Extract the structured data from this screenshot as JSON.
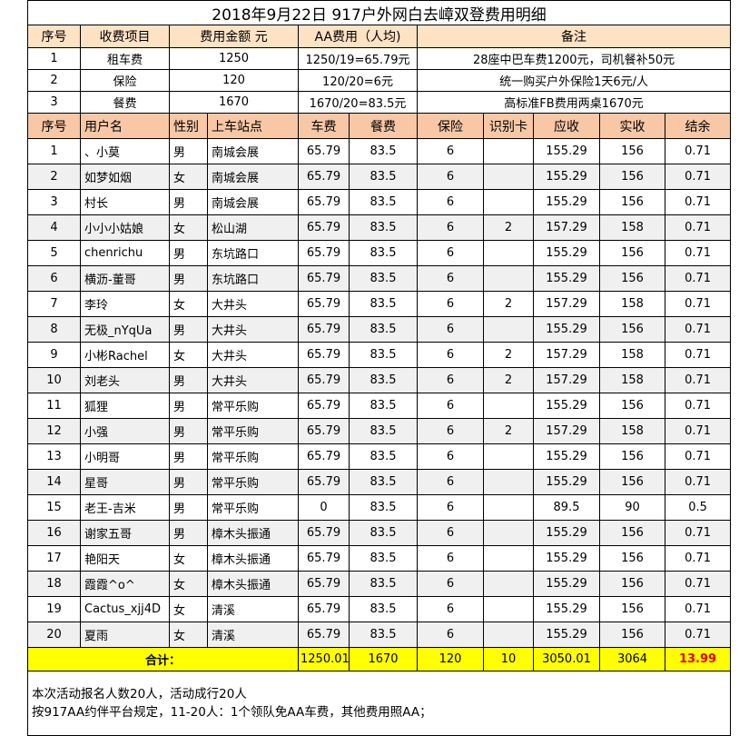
{
  "title": "2018年9月22日 917户外网白去嶂双登费用明细",
  "summary": {
    "headers": [
      "序号",
      "收费项目",
      "费用金额 元",
      "AA费用（人均)",
      "备注"
    ],
    "rows": [
      {
        "no": "1",
        "item": "租车费",
        "amount": "1250",
        "aa": "1250/19=65.79元",
        "note": "28座中巴车费1200元，司机餐补50元"
      },
      {
        "no": "2",
        "item": "保险",
        "amount": "120",
        "aa": "120/20=6元",
        "note": "统一购买户外保险1天6元/人"
      },
      {
        "no": "3",
        "item": "餐费",
        "amount": "1670",
        "aa": "1670/20=83.5元",
        "note": "高标准FB费用两桌1670元"
      }
    ]
  },
  "detail": {
    "headers": [
      "序号",
      "用户名",
      "性别",
      "上车站点",
      "车费",
      "餐费",
      "保险",
      "识别卡",
      "应收",
      "实收",
      "结余"
    ],
    "rows": [
      {
        "no": "1",
        "name": "、小莫",
        "gender": "男",
        "station": "南城会展",
        "car": "65.79",
        "meal": "83.5",
        "ins": "6",
        "card": "",
        "due": "155.29",
        "paid": "156",
        "bal": "0.71"
      },
      {
        "no": "2",
        "name": "如梦如烟",
        "gender": "女",
        "station": "南城会展",
        "car": "65.79",
        "meal": "83.5",
        "ins": "6",
        "card": "",
        "due": "155.29",
        "paid": "156",
        "bal": "0.71"
      },
      {
        "no": "3",
        "name": "村长",
        "gender": "男",
        "station": "南城会展",
        "car": "65.79",
        "meal": "83.5",
        "ins": "6",
        "card": "",
        "due": "155.29",
        "paid": "156",
        "bal": "0.71"
      },
      {
        "no": "4",
        "name": "小小小姑娘",
        "gender": "女",
        "station": "松山湖",
        "car": "65.79",
        "meal": "83.5",
        "ins": "6",
        "card": "2",
        "due": "157.29",
        "paid": "158",
        "bal": "0.71"
      },
      {
        "no": "5",
        "name": "chenrichu",
        "gender": "男",
        "station": "东坑路口",
        "car": "65.79",
        "meal": "83.5",
        "ins": "6",
        "card": "",
        "due": "155.29",
        "paid": "156",
        "bal": "0.71"
      },
      {
        "no": "6",
        "name": "横沥-董哥",
        "gender": "男",
        "station": "东坑路口",
        "car": "65.79",
        "meal": "83.5",
        "ins": "6",
        "card": "",
        "due": "155.29",
        "paid": "156",
        "bal": "0.71"
      },
      {
        "no": "7",
        "name": "李玲",
        "gender": "女",
        "station": "大井头",
        "car": "65.79",
        "meal": "83.5",
        "ins": "6",
        "card": "2",
        "due": "157.29",
        "paid": "158",
        "bal": "0.71"
      },
      {
        "no": "8",
        "name": "无极_nYqUa",
        "gender": "男",
        "station": "大井头",
        "car": "65.79",
        "meal": "83.5",
        "ins": "6",
        "card": "",
        "due": "155.29",
        "paid": "156",
        "bal": "0.71"
      },
      {
        "no": "9",
        "name": "小彬Rachel",
        "gender": "女",
        "station": "大井头",
        "car": "65.79",
        "meal": "83.5",
        "ins": "6",
        "card": "2",
        "due": "157.29",
        "paid": "158",
        "bal": "0.71"
      },
      {
        "no": "10",
        "name": "刘老头",
        "gender": "男",
        "station": "大井头",
        "car": "65.79",
        "meal": "83.5",
        "ins": "6",
        "card": "2",
        "due": "157.29",
        "paid": "158",
        "bal": "0.71"
      },
      {
        "no": "11",
        "name": "狐狸",
        "gender": "男",
        "station": "常平乐购",
        "car": "65.79",
        "meal": "83.5",
        "ins": "6",
        "card": "",
        "due": "155.29",
        "paid": "156",
        "bal": "0.71"
      },
      {
        "no": "12",
        "name": "小强",
        "gender": "男",
        "station": "常平乐购",
        "car": "65.79",
        "meal": "83.5",
        "ins": "6",
        "card": "2",
        "due": "157.29",
        "paid": "158",
        "bal": "0.71"
      },
      {
        "no": "13",
        "name": "小明哥",
        "gender": "男",
        "station": "常平乐购",
        "car": "65.79",
        "meal": "83.5",
        "ins": "6",
        "card": "",
        "due": "155.29",
        "paid": "156",
        "bal": "0.71"
      },
      {
        "no": "14",
        "name": "星哥",
        "gender": "男",
        "station": "常平乐购",
        "car": "65.79",
        "meal": "83.5",
        "ins": "6",
        "card": "",
        "due": "155.29",
        "paid": "156",
        "bal": "0.71"
      },
      {
        "no": "15",
        "name": "老王-吉米",
        "gender": "男",
        "station": "常平乐购",
        "car": "0",
        "meal": "83.5",
        "ins": "6",
        "card": "",
        "due": "89.5",
        "paid": "90",
        "bal": "0.5"
      },
      {
        "no": "16",
        "name": "谢家五哥",
        "gender": "男",
        "station": "樟木头振通",
        "car": "65.79",
        "meal": "83.5",
        "ins": "6",
        "card": "",
        "due": "155.29",
        "paid": "156",
        "bal": "0.71"
      },
      {
        "no": "17",
        "name": "艳阳天",
        "gender": "女",
        "station": "樟木头振通",
        "car": "65.79",
        "meal": "83.5",
        "ins": "6",
        "card": "",
        "due": "155.29",
        "paid": "156",
        "bal": "0.71"
      },
      {
        "no": "18",
        "name": "霞霞^o^",
        "gender": "女",
        "station": "樟木头振通",
        "car": "65.79",
        "meal": "83.5",
        "ins": "6",
        "card": "",
        "due": "155.29",
        "paid": "156",
        "bal": "0.71"
      },
      {
        "no": "19",
        "name": "Cactus_xjj4D",
        "gender": "女",
        "station": "清溪",
        "car": "65.79",
        "meal": "83.5",
        "ins": "6",
        "card": "",
        "due": "155.29",
        "paid": "156",
        "bal": "0.71"
      },
      {
        "no": "20",
        "name": "夏雨",
        "gender": "女",
        "station": "清溪",
        "car": "65.79",
        "meal": "83.5",
        "ins": "6",
        "card": "",
        "due": "155.29",
        "paid": "156",
        "bal": "0.71"
      }
    ],
    "total": {
      "label": "合计：",
      "car": "1250.01",
      "meal": "1670",
      "ins": "120",
      "card": "10",
      "due": "3050.01",
      "paid": "3064",
      "bal": "13.99"
    }
  },
  "notes": [
    "本次活动报名人数20人，活动成行20人",
    "按917AA约伴平台规定，11-20人：1个领队免AA车费，其他费用照AA；"
  ],
  "colors": {
    "summary_header": "#fde2c4",
    "column_header": "#f7c7a6",
    "total_row": "#ffff00",
    "balance_total": "#e00000",
    "alt_row": "#f0f0f0"
  }
}
